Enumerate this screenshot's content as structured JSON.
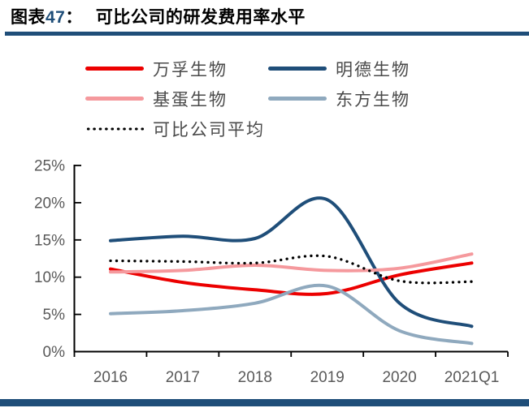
{
  "figure": {
    "label_word": "图表",
    "label_number": "47",
    "label_colon": "：",
    "title": "可比公司的研发费用率水平"
  },
  "colors": {
    "accent_navy": "#1F4E79",
    "axis_line": "#000000",
    "tick_label_gray": "#595959",
    "legend_text": "#4a4a4a"
  },
  "chart_data": {
    "type": "line",
    "title": "可比公司的研发费用率水平",
    "categories": [
      "2016",
      "2017",
      "2018",
      "2019",
      "2020",
      "2021Q1"
    ],
    "series": [
      {
        "name": "万孚生物",
        "color": "#EC0000",
        "style": "solid",
        "values": [
          11.1,
          9.3,
          8.3,
          7.8,
          10.3,
          11.9
        ]
      },
      {
        "name": "明德生物",
        "color": "#1F4E79",
        "style": "solid",
        "values": [
          14.9,
          15.5,
          15.2,
          20.4,
          6.5,
          3.4
        ]
      },
      {
        "name": "基蛋生物",
        "color": "#F5999D",
        "style": "solid",
        "values": [
          10.7,
          10.9,
          11.6,
          10.9,
          11.2,
          13.1
        ]
      },
      {
        "name": "东方生物",
        "color": "#8FA9BE",
        "style": "solid",
        "values": [
          5.1,
          5.5,
          6.5,
          8.8,
          2.8,
          1.1
        ]
      },
      {
        "name": "可比公司平均",
        "color": "#000000",
        "style": "dotted",
        "values": [
          12.2,
          12.1,
          11.9,
          12.8,
          9.5,
          9.4
        ]
      }
    ],
    "xlabel": "",
    "ylabel": "",
    "ylim": [
      0,
      25
    ],
    "y_ticks": [
      "0%",
      "5%",
      "10%",
      "15%",
      "20%",
      "25%"
    ],
    "y_tick_values": [
      0,
      5,
      10,
      15,
      20,
      25
    ],
    "grid": false,
    "legend_position": "top-left",
    "unit": "percent"
  }
}
